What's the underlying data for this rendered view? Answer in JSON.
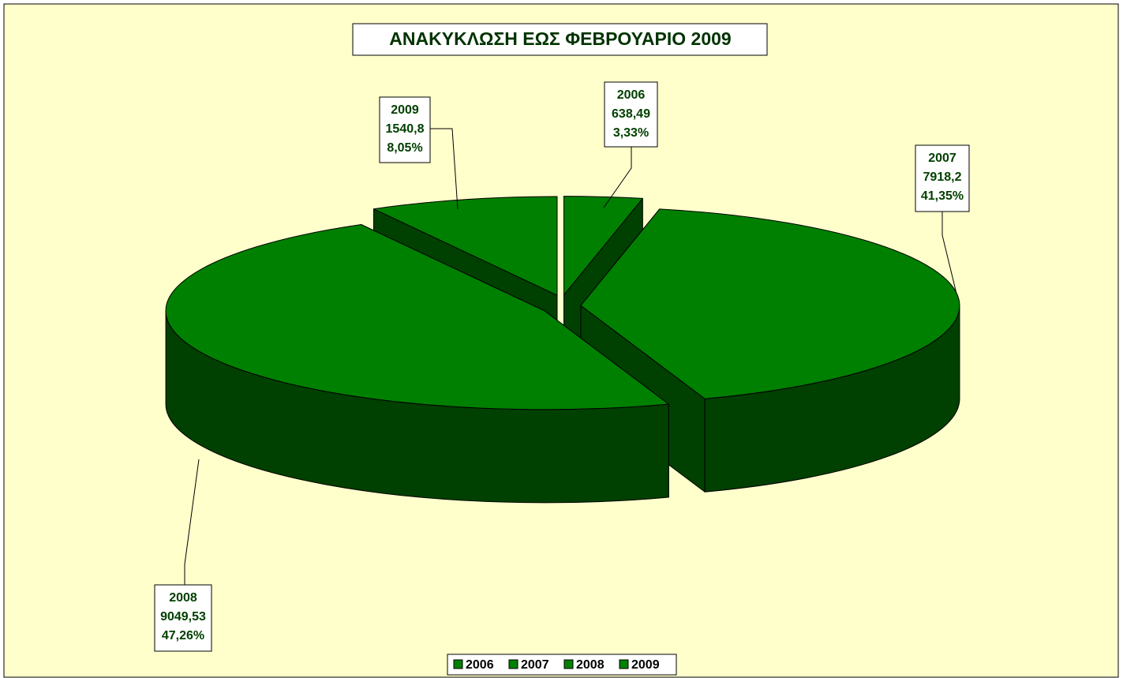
{
  "chart_data": {
    "type": "pie3d",
    "title": "ΑΝΑΚΥΚΛΩΣΗ ΕΩΣ ΦΕΒΡΟΥΑΡΙΟ 2009",
    "categories": [
      "2006",
      "2007",
      "2008",
      "2009"
    ],
    "values": [
      638.49,
      7918.2,
      9049.53,
      1540.8
    ],
    "value_labels": [
      "638,49",
      "7918,2",
      "9049,53",
      "1540,8"
    ],
    "percent_labels": [
      "3,33%",
      "41,35%",
      "47,26%",
      "8,05%"
    ],
    "color": "#008000",
    "side_color": "#004000",
    "legend": "bottom"
  }
}
